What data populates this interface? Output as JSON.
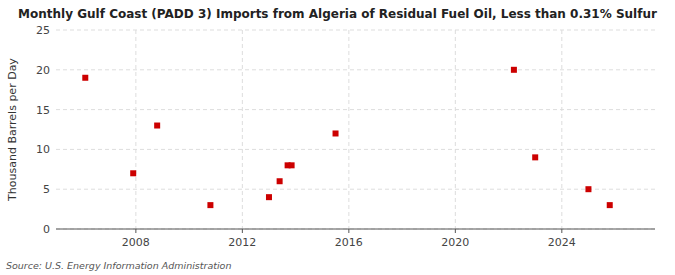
{
  "chart_data": {
    "type": "scatter",
    "title": "Monthly Gulf Coast (PADD 3) Imports from Algeria of Residual Fuel Oil, Less than 0.31% Sulfur",
    "y_label": "Thousand Barrels per Day",
    "annotations": [
      "Source: U.S. Energy Information Administration"
    ],
    "x": [
      2006.1,
      2007.9,
      2008.8,
      2010.8,
      2013.0,
      2013.4,
      2013.7,
      2013.85,
      2015.5,
      2022.2,
      2023.0,
      2025.0,
      2025.8
    ],
    "values": [
      19,
      7,
      13,
      3,
      4,
      6,
      8,
      8,
      12,
      20,
      9,
      5,
      3
    ],
    "color": "#cc0000",
    "marker": "square",
    "xlim": [
      2005.0,
      2027.5
    ],
    "ylim": [
      0,
      25
    ],
    "xticks": [
      2008,
      2012,
      2016,
      2020,
      2024
    ],
    "yticks": [
      0,
      5,
      10,
      15,
      20,
      25
    ],
    "grid": true
  }
}
